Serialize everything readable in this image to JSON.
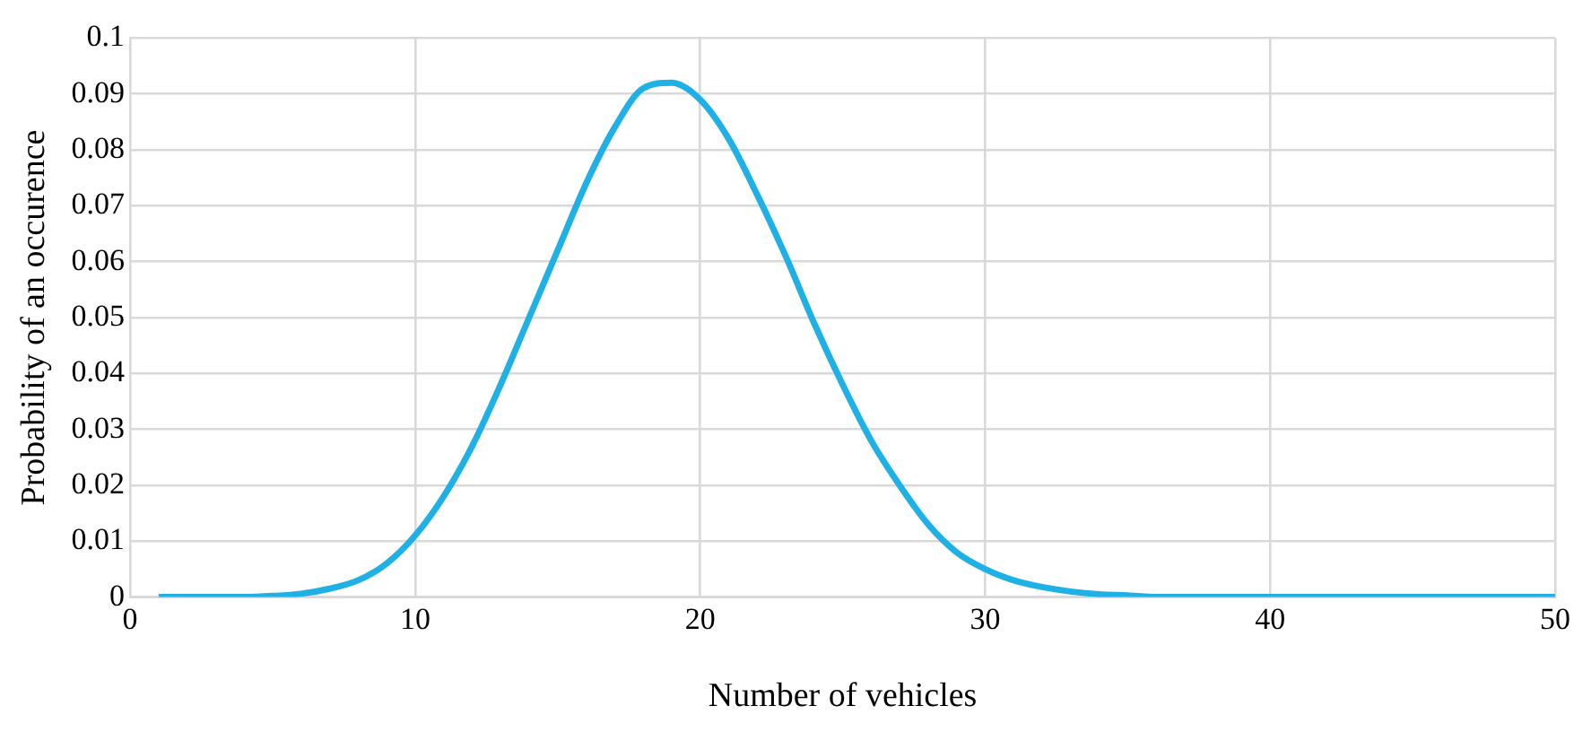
{
  "chart_data": {
    "type": "line",
    "xlabel": "Number of vehicles",
    "ylabel": "Probability of an occurence",
    "x": [
      1,
      2,
      3,
      4,
      5,
      6,
      7,
      8,
      9,
      10,
      11,
      12,
      13,
      14,
      15,
      16,
      17,
      18,
      19,
      20,
      21,
      22,
      23,
      24,
      25,
      26,
      27,
      28,
      29,
      30,
      31,
      32,
      33,
      34,
      35,
      36,
      38,
      40,
      42,
      44,
      46,
      48,
      50
    ],
    "series": [
      {
        "color": "#1fb0e6",
        "values": [
          0,
          0,
          0,
          0,
          0.0002,
          0.0006,
          0.0015,
          0.003,
          0.006,
          0.011,
          0.018,
          0.027,
          0.038,
          0.05,
          0.062,
          0.074,
          0.084,
          0.091,
          0.092,
          0.089,
          0.082,
          0.072,
          0.061,
          0.049,
          0.038,
          0.028,
          0.02,
          0.013,
          0.008,
          0.005,
          0.003,
          0.0018,
          0.001,
          0.0005,
          0.0003,
          0,
          0,
          0,
          0,
          0,
          0,
          0,
          0
        ]
      }
    ],
    "xlim": [
      0,
      50
    ],
    "xticks": [
      0,
      10,
      20,
      30,
      40,
      50
    ],
    "ylim": [
      0,
      0.1
    ],
    "yticks": [
      0,
      0.01,
      0.02,
      0.03,
      0.04,
      0.05,
      0.06,
      0.07,
      0.08,
      0.09,
      0.1
    ],
    "grid": true,
    "marker": "none",
    "line_style": "solid"
  }
}
